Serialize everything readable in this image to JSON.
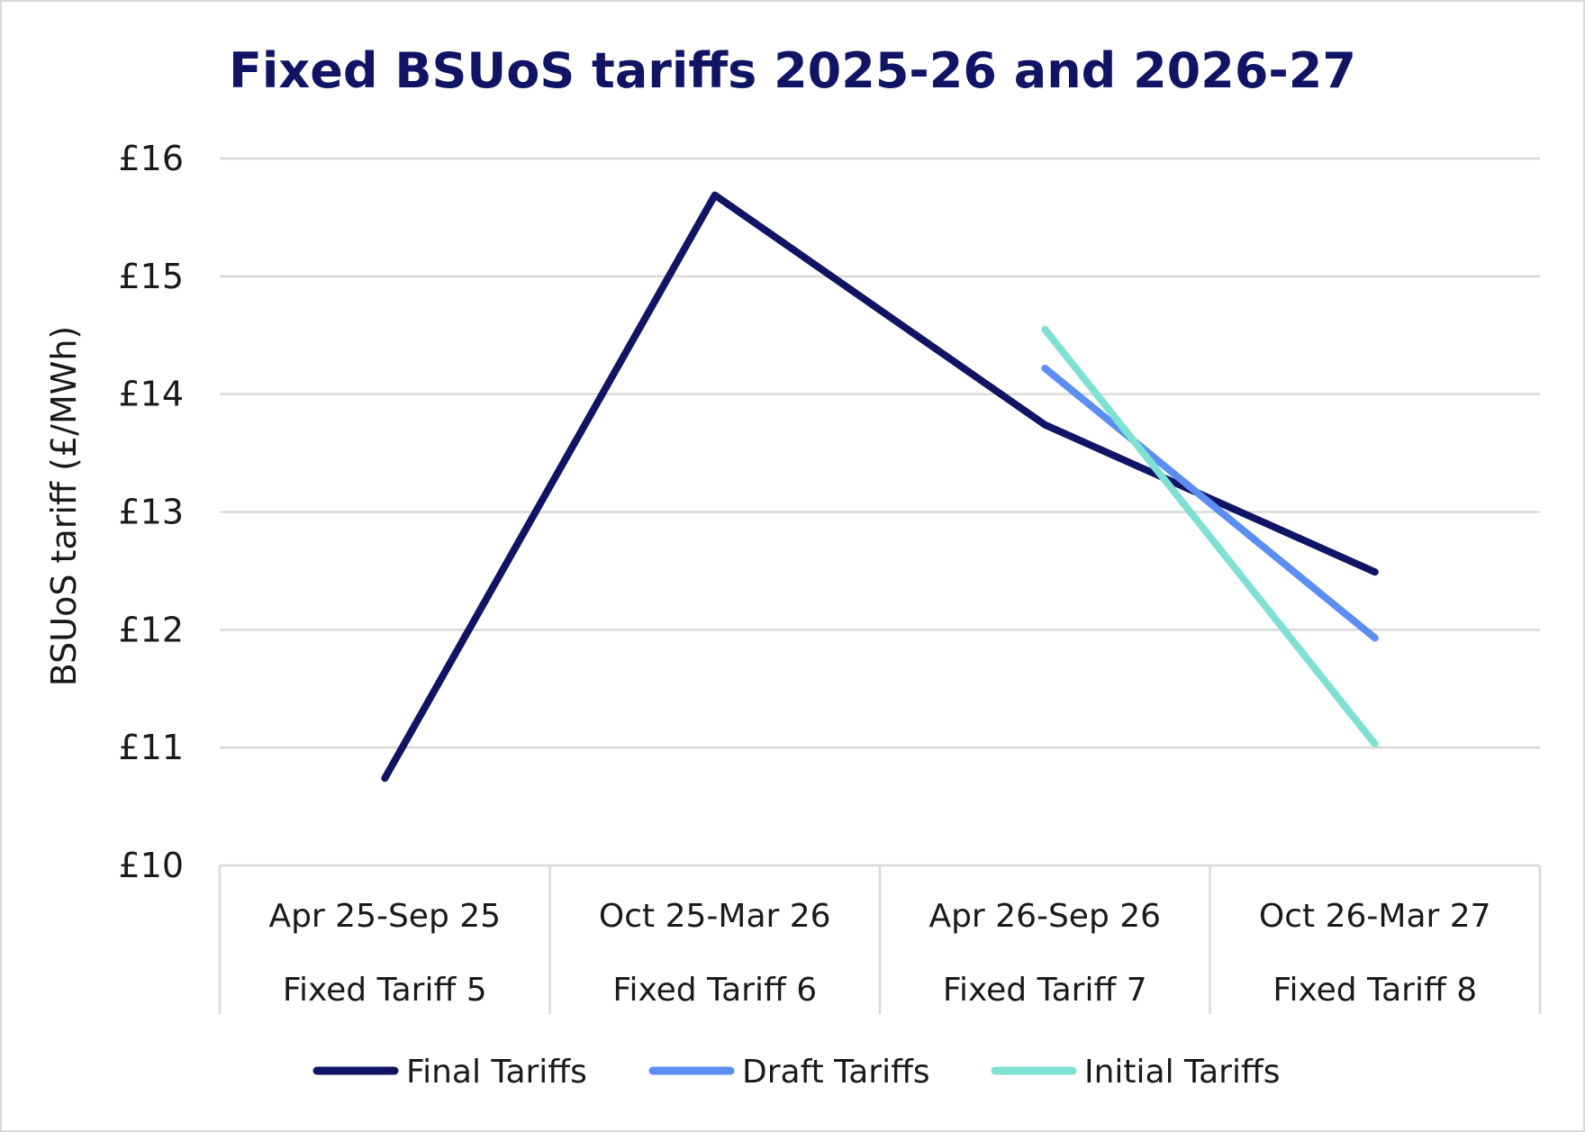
{
  "chart_data": {
    "type": "line",
    "title": "Fixed BSUoS tariffs 2025-26 and 2026-27",
    "xlabel": "",
    "ylabel": "BSUoS tariff (£/MWh)",
    "ylim": [
      10,
      16
    ],
    "ytick_step": 1,
    "ytick_prefix": "£",
    "grid": true,
    "legend_position": "bottom",
    "categories": [
      {
        "period": "Apr 25-Sep 25",
        "tariff": "Fixed Tariff 5"
      },
      {
        "period": "Oct 25-Mar 26",
        "tariff": "Fixed Tariff 6"
      },
      {
        "period": "Apr 26-Sep 26",
        "tariff": "Fixed Tariff 7"
      },
      {
        "period": "Oct 26-Mar 27",
        "tariff": "Fixed Tariff 8"
      }
    ],
    "series": [
      {
        "name": "Final Tariffs",
        "color": "#0f1464",
        "values": [
          10.74,
          15.69,
          13.74,
          12.49
        ]
      },
      {
        "name": "Draft Tariffs",
        "color": "#5b8ef0",
        "values": [
          null,
          null,
          14.22,
          11.93
        ]
      },
      {
        "name": "Initial Tariffs",
        "color": "#7fe0d4",
        "values": [
          null,
          null,
          14.55,
          11.03
        ]
      }
    ],
    "colors": {
      "title": "#0f1464",
      "text": "#1a1a1a",
      "gridline": "#d9d9d9"
    }
  }
}
